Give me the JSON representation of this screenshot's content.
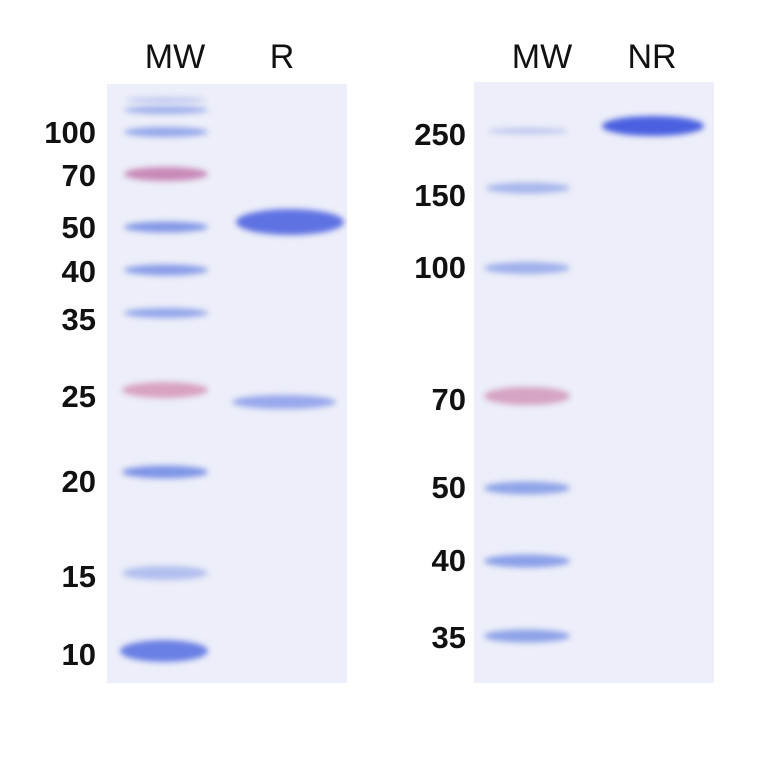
{
  "colors": {
    "gel": "#eceef9",
    "band_blue": "#5d72e0",
    "band_pink": "#c987b4",
    "band_light": "#a9b6ea"
  },
  "left_gel": {
    "lanes": [
      "MW",
      "R"
    ],
    "markers": [
      "100",
      "70",
      "50",
      "40",
      "35",
      "25",
      "20",
      "15",
      "10"
    ]
  },
  "right_gel": {
    "lanes": [
      "MW",
      "NR"
    ],
    "markers": [
      "250",
      "150",
      "100",
      "70",
      "50",
      "40",
      "35"
    ]
  }
}
